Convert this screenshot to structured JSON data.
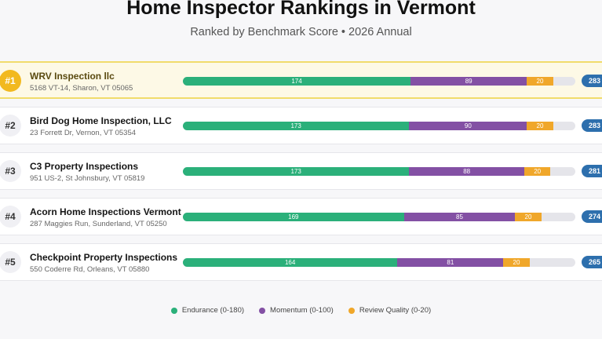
{
  "chart_data": {
    "type": "bar",
    "stacked": true,
    "orientation": "horizontal",
    "title": "Home Inspector Rankings in Vermont",
    "subtitle": "Ranked by Benchmark Score • 2026 Annual",
    "xlim": [
      0,
      300
    ],
    "rows": [
      {
        "rank": "#1",
        "name": "WRV Inspection llc",
        "address": "5168 VT-14, Sharon, VT 05065",
        "endurance": 174,
        "momentum": 89,
        "review": 20,
        "total": 283
      },
      {
        "rank": "#2",
        "name": "Bird Dog Home Inspection, LLC",
        "address": "23 Forrett Dr, Vernon, VT 05354",
        "endurance": 173,
        "momentum": 90,
        "review": 20,
        "total": 283
      },
      {
        "rank": "#3",
        "name": "C3 Property Inspections",
        "address": "951 US-2, St Johnsbury, VT 05819",
        "endurance": 173,
        "momentum": 88,
        "review": 20,
        "total": 281
      },
      {
        "rank": "#4",
        "name": "Acorn Home Inspections Vermont",
        "address": "287 Maggies Run, Sunderland, VT 05250",
        "endurance": 169,
        "momentum": 85,
        "review": 20,
        "total": 274
      },
      {
        "rank": "#5",
        "name": "Checkpoint Property Inspections",
        "address": "550 Coderre Rd, Orleans, VT 05880",
        "endurance": 164,
        "momentum": 81,
        "review": 20,
        "total": 265
      }
    ],
    "series": [
      {
        "key": "endurance",
        "name": "Endurance (0-180)",
        "color": "#2bb07a"
      },
      {
        "key": "momentum",
        "name": "Momentum (0-100)",
        "color": "#8350a4"
      },
      {
        "key": "review",
        "name": "Review Quality (0-20)",
        "color": "#f0a72a"
      }
    ],
    "legend_position": "bottom"
  }
}
